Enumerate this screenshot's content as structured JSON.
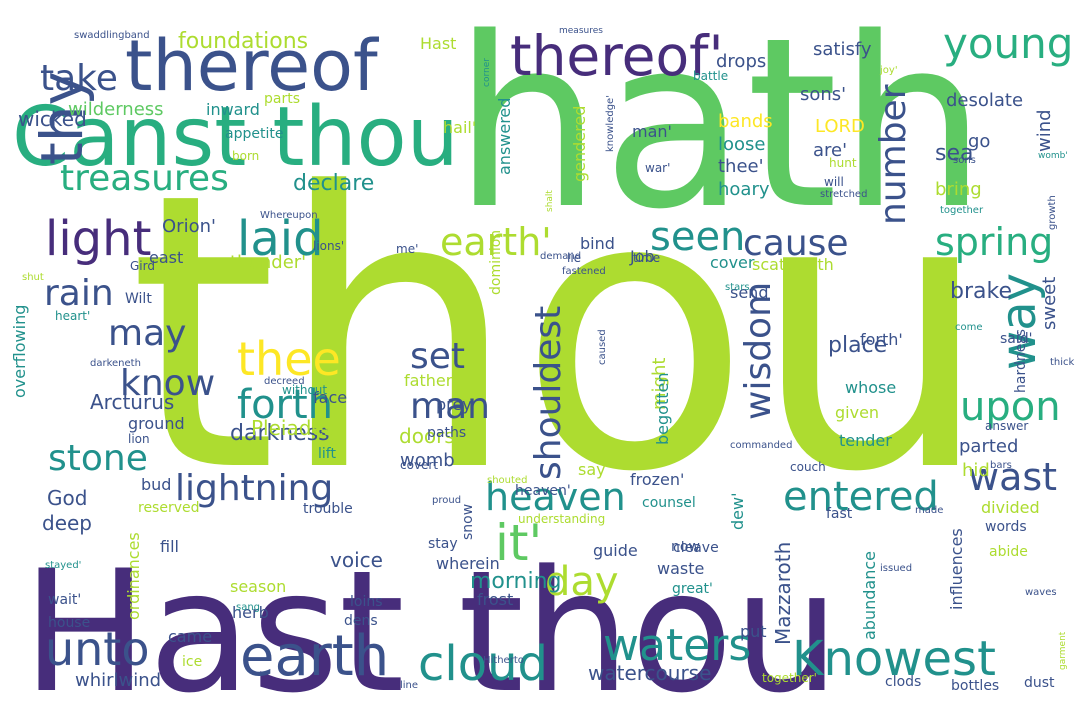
{
  "palette": {
    "purple": "#472d7b",
    "indigo": "#3b528b",
    "blue": "#2c728e",
    "teal": "#21918c",
    "green": "#28ae80",
    "lightgreen": "#5ec962",
    "lime": "#addc30",
    "yellow": "#fde725"
  },
  "words": [
    {
      "text": "thou",
      "color": "lime"
    },
    {
      "text": "hath",
      "color": "lightgreen"
    },
    {
      "text": "Hast thou",
      "color": "purple"
    },
    {
      "text": "Canst thou",
      "color": "green"
    },
    {
      "text": "thereof",
      "color": "indigo"
    },
    {
      "text": "thereof'",
      "color": "purple"
    },
    {
      "text": "young",
      "color": "green"
    },
    {
      "text": "thy",
      "color": "indigo"
    },
    {
      "text": "light",
      "color": "purple"
    },
    {
      "text": "take",
      "color": "indigo"
    },
    {
      "text": "treasures",
      "color": "green"
    },
    {
      "text": "laid",
      "color": "teal"
    },
    {
      "text": "thee",
      "color": "yellow"
    },
    {
      "text": "earth'",
      "color": "lime"
    },
    {
      "text": "seen",
      "color": "teal"
    },
    {
      "text": "cause",
      "color": "indigo"
    },
    {
      "text": "spring",
      "color": "green"
    },
    {
      "text": "way",
      "color": "teal"
    },
    {
      "text": "upon",
      "color": "green"
    },
    {
      "text": "rain",
      "color": "indigo"
    },
    {
      "text": "may",
      "color": "indigo"
    },
    {
      "text": "know",
      "color": "indigo"
    },
    {
      "text": "forth",
      "color": "teal"
    },
    {
      "text": "set",
      "color": "indigo"
    },
    {
      "text": "man",
      "color": "indigo"
    },
    {
      "text": "wisdom",
      "color": "indigo"
    },
    {
      "text": "stone",
      "color": "teal"
    },
    {
      "text": "lightning",
      "color": "indigo"
    },
    {
      "text": "shouldest",
      "color": "indigo"
    },
    {
      "text": "it'",
      "color": "lightgreen"
    },
    {
      "text": "day",
      "color": "lime"
    },
    {
      "text": "heaven",
      "color": "teal"
    },
    {
      "text": "entered",
      "color": "teal"
    },
    {
      "text": "wast",
      "color": "indigo"
    },
    {
      "text": "earth",
      "color": "indigo"
    },
    {
      "text": "unto",
      "color": "indigo"
    },
    {
      "text": "cloud",
      "color": "teal"
    },
    {
      "text": "waters",
      "color": "teal"
    },
    {
      "text": "Knowest",
      "color": "teal"
    },
    {
      "text": "number",
      "color": "indigo"
    },
    {
      "text": "darkness",
      "color": "indigo"
    },
    {
      "text": "foundations",
      "color": "lime"
    },
    {
      "text": "wilderness",
      "color": "lightgreen"
    },
    {
      "text": "wicked",
      "color": "indigo"
    },
    {
      "text": "declare",
      "color": "teal"
    },
    {
      "text": "Orion'",
      "color": "indigo"
    },
    {
      "text": "thunder'",
      "color": "lime"
    },
    {
      "text": "morning",
      "color": "teal"
    },
    {
      "text": "brake",
      "color": "indigo"
    },
    {
      "text": "place",
      "color": "indigo"
    },
    {
      "text": "God",
      "color": "indigo"
    },
    {
      "text": "deep",
      "color": "indigo"
    },
    {
      "text": "Arcturus",
      "color": "indigo"
    },
    {
      "text": "Pleiades",
      "color": "lime"
    },
    {
      "text": "voice",
      "color": "indigo"
    },
    {
      "text": "Mazzaroth",
      "color": "indigo"
    },
    {
      "text": "watercourse",
      "color": "indigo"
    },
    {
      "text": "whirlwind",
      "color": "indigo"
    },
    {
      "text": "Hast",
      "color": "lime"
    },
    {
      "text": "drops",
      "color": "indigo"
    },
    {
      "text": "satisfy",
      "color": "indigo"
    },
    {
      "text": "sons'",
      "color": "indigo"
    },
    {
      "text": "desolate",
      "color": "indigo"
    },
    {
      "text": "bands",
      "color": "yellow"
    },
    {
      "text": "loose",
      "color": "teal"
    },
    {
      "text": "LORD",
      "color": "yellow"
    },
    {
      "text": "are'",
      "color": "indigo"
    },
    {
      "text": "thee'",
      "color": "indigo"
    },
    {
      "text": "hoary",
      "color": "teal"
    },
    {
      "text": "bring",
      "color": "lime"
    },
    {
      "text": "sea",
      "color": "indigo"
    },
    {
      "text": "go",
      "color": "indigo"
    },
    {
      "text": "wind",
      "color": "indigo"
    },
    {
      "text": "man'",
      "color": "indigo"
    },
    {
      "text": "hail'",
      "color": "lime"
    },
    {
      "text": "inward",
      "color": "teal"
    },
    {
      "text": "appetite",
      "color": "teal"
    },
    {
      "text": "parts",
      "color": "lime"
    },
    {
      "text": "born",
      "color": "lime"
    },
    {
      "text": "answered",
      "color": "teal"
    },
    {
      "text": "gendered",
      "color": "lime"
    },
    {
      "text": "dominion",
      "color": "lime"
    },
    {
      "text": "bind",
      "color": "indigo"
    },
    {
      "text": "Job",
      "color": "indigo"
    },
    {
      "text": "send",
      "color": "indigo"
    },
    {
      "text": "cover",
      "color": "teal"
    },
    {
      "text": "scattereth",
      "color": "lime"
    },
    {
      "text": "doors",
      "color": "lime"
    },
    {
      "text": "womb",
      "color": "indigo"
    },
    {
      "text": "father",
      "color": "lime"
    },
    {
      "text": "might",
      "color": "lime"
    },
    {
      "text": "begotten",
      "color": "teal"
    },
    {
      "text": "given",
      "color": "lime"
    },
    {
      "text": "whose",
      "color": "teal"
    },
    {
      "text": "tender",
      "color": "teal"
    },
    {
      "text": "forth'",
      "color": "indigo"
    },
    {
      "text": "parted",
      "color": "indigo"
    },
    {
      "text": "hid",
      "color": "lime"
    },
    {
      "text": "sweet",
      "color": "indigo"
    },
    {
      "text": "said'",
      "color": "indigo"
    },
    {
      "text": "ground",
      "color": "indigo"
    },
    {
      "text": "lift",
      "color": "teal"
    },
    {
      "text": "face",
      "color": "indigo"
    },
    {
      "text": "bud",
      "color": "indigo"
    },
    {
      "text": "say",
      "color": "lime"
    },
    {
      "text": "frozen'",
      "color": "indigo"
    },
    {
      "text": "dew'",
      "color": "teal"
    },
    {
      "text": "snow",
      "color": "indigo"
    },
    {
      "text": "prey",
      "color": "indigo"
    },
    {
      "text": "paths",
      "color": "indigo"
    },
    {
      "text": "ordinances",
      "color": "lime"
    },
    {
      "text": "reserved",
      "color": "lime"
    },
    {
      "text": "trouble",
      "color": "indigo"
    },
    {
      "text": "fill",
      "color": "indigo"
    },
    {
      "text": "counsel",
      "color": "teal"
    },
    {
      "text": "understanding",
      "color": "lime"
    },
    {
      "text": "guide",
      "color": "indigo"
    },
    {
      "text": "season",
      "color": "lime"
    },
    {
      "text": "herb",
      "color": "indigo"
    },
    {
      "text": "wherein",
      "color": "indigo"
    },
    {
      "text": "waste",
      "color": "indigo"
    },
    {
      "text": "abundance",
      "color": "teal"
    },
    {
      "text": "influences",
      "color": "indigo"
    },
    {
      "text": "divided",
      "color": "lime"
    },
    {
      "text": "fast",
      "color": "indigo"
    },
    {
      "text": "words",
      "color": "indigo"
    },
    {
      "text": "abide",
      "color": "lime"
    },
    {
      "text": "now",
      "color": "indigo"
    },
    {
      "text": "cleave",
      "color": "indigo"
    },
    {
      "text": "great'",
      "color": "teal"
    },
    {
      "text": "frost",
      "color": "indigo"
    },
    {
      "text": "came",
      "color": "indigo"
    },
    {
      "text": "ice",
      "color": "lime"
    },
    {
      "text": "put",
      "color": "indigo"
    },
    {
      "text": "clods",
      "color": "indigo"
    },
    {
      "text": "bottles",
      "color": "indigo"
    },
    {
      "text": "dust",
      "color": "indigo"
    },
    {
      "text": "together'",
      "color": "lime"
    },
    {
      "text": "loins",
      "color": "indigo"
    },
    {
      "text": "dens",
      "color": "indigo"
    },
    {
      "text": "house",
      "color": "indigo"
    },
    {
      "text": "wait'",
      "color": "indigo"
    },
    {
      "text": "overflowing",
      "color": "teal"
    },
    {
      "text": "east",
      "color": "indigo"
    },
    {
      "text": "Wilt",
      "color": "indigo"
    },
    {
      "text": "heart'",
      "color": "teal"
    },
    {
      "text": "lions'",
      "color": "indigo"
    },
    {
      "text": "Gird",
      "color": "indigo"
    },
    {
      "text": "me'",
      "color": "indigo"
    },
    {
      "text": "shut",
      "color": "lime"
    },
    {
      "text": "darkeneth",
      "color": "indigo"
    },
    {
      "text": "lion",
      "color": "indigo"
    },
    {
      "text": "decreed",
      "color": "indigo"
    },
    {
      "text": "without",
      "color": "teal"
    },
    {
      "text": "covert",
      "color": "indigo"
    },
    {
      "text": "couch",
      "color": "indigo"
    },
    {
      "text": "Whereupon",
      "color": "indigo"
    },
    {
      "text": "lie",
      "color": "indigo"
    },
    {
      "text": "time",
      "color": "indigo"
    },
    {
      "text": "demand",
      "color": "indigo"
    },
    {
      "text": "fastened",
      "color": "indigo"
    },
    {
      "text": "hardness",
      "color": "indigo"
    },
    {
      "text": "stars",
      "color": "teal"
    },
    {
      "text": "caused",
      "color": "indigo"
    },
    {
      "text": "commanded",
      "color": "indigo"
    },
    {
      "text": "answer",
      "color": "indigo"
    },
    {
      "text": "thick",
      "color": "indigo"
    },
    {
      "text": "come",
      "color": "teal"
    },
    {
      "text": "bars",
      "color": "indigo"
    },
    {
      "text": "issued",
      "color": "indigo"
    },
    {
      "text": "waves",
      "color": "indigo"
    },
    {
      "text": "made",
      "color": "indigo"
    },
    {
      "text": "proud",
      "color": "indigo"
    },
    {
      "text": "shouted",
      "color": "lime"
    },
    {
      "text": "heaven'",
      "color": "indigo"
    },
    {
      "text": "stay",
      "color": "indigo"
    },
    {
      "text": "stayed'",
      "color": "teal"
    },
    {
      "text": "sang",
      "color": "teal"
    },
    {
      "text": "Hitherto",
      "color": "indigo"
    },
    {
      "text": "line",
      "color": "indigo"
    },
    {
      "text": "garment",
      "color": "lime"
    },
    {
      "text": "swaddlingband",
      "color": "indigo"
    },
    {
      "text": "measures",
      "color": "indigo"
    },
    {
      "text": "corner",
      "color": "teal"
    },
    {
      "text": "knowledge'",
      "color": "indigo"
    },
    {
      "text": "shalt",
      "color": "lime"
    },
    {
      "text": "war'",
      "color": "indigo"
    },
    {
      "text": "joy'",
      "color": "lime"
    },
    {
      "text": "battle",
      "color": "teal"
    },
    {
      "text": "hunt",
      "color": "lime"
    },
    {
      "text": "will",
      "color": "indigo"
    },
    {
      "text": "sons",
      "color": "indigo"
    },
    {
      "text": "womb'",
      "color": "teal"
    },
    {
      "text": "stretched",
      "color": "indigo"
    },
    {
      "text": "growth",
      "color": "indigo"
    },
    {
      "text": "together",
      "color": "teal"
    }
  ]
}
